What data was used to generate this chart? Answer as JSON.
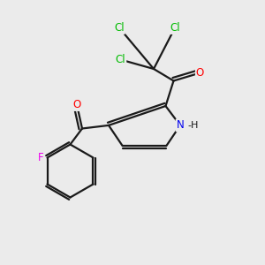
{
  "background_color": "#ebebeb",
  "bond_color": "#1a1a1a",
  "atom_colors": {
    "Cl": "#00bb00",
    "O": "#ff0000",
    "N": "#0000ee",
    "F": "#ee00ee",
    "H": "#1a1a1a",
    "C": "#1a1a1a"
  },
  "figsize": [
    3.0,
    3.0
  ],
  "dpi": 100,
  "lw": 1.6,
  "fontsize": 8.5
}
